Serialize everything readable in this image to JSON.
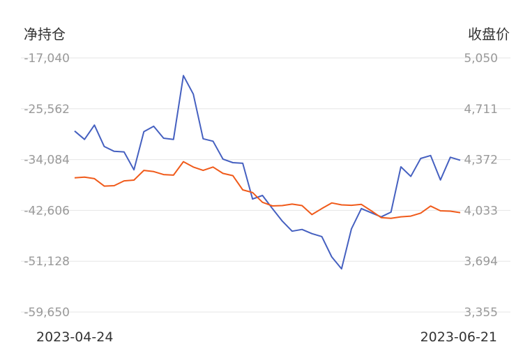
{
  "chart_data": {
    "type": "line",
    "left_axis_title": "净持仓",
    "right_axis_title": "收盘价",
    "left_ticks": [
      "-17,040",
      "-25,562",
      "-34,084",
      "-42,606",
      "-51,128",
      "-59,650"
    ],
    "right_ticks": [
      "5,050",
      "4,711",
      "4,372",
      "4,033",
      "3,694",
      "3,355"
    ],
    "left_ylim": [
      -59650,
      -17040
    ],
    "right_ylim": [
      3355,
      5050
    ],
    "x_start_label": "2023-04-24",
    "x_end_label": "2023-06-21",
    "grid": true,
    "series": [
      {
        "axis": "left",
        "color": "#4560c0",
        "values": [
          -29300,
          -30700,
          -28300,
          -31900,
          -32700,
          -32800,
          -35800,
          -29400,
          -28500,
          -30500,
          -30700,
          -20000,
          -23100,
          -30600,
          -31000,
          -34000,
          -34600,
          -34700,
          -40700,
          -40100,
          -42300,
          -44400,
          -46100,
          -45800,
          -46500,
          -47000,
          -50400,
          -52400,
          -45700,
          -42300,
          -43000,
          -43700,
          -42900,
          -35300,
          -36900,
          -33900,
          -33400,
          -37500,
          -33700,
          -34200
        ]
      },
      {
        "axis": "right",
        "color": "#f05a1a",
        "values": [
          4250,
          4255,
          4245,
          4195,
          4198,
          4230,
          4235,
          4300,
          4292,
          4272,
          4268,
          4358,
          4322,
          4300,
          4322,
          4280,
          4265,
          4170,
          4152,
          4087,
          4063,
          4065,
          4075,
          4065,
          4005,
          4045,
          4083,
          4070,
          4067,
          4073,
          4030,
          3985,
          3980,
          3990,
          3995,
          4015,
          4062,
          4030,
          4028,
          4018
        ]
      }
    ]
  }
}
